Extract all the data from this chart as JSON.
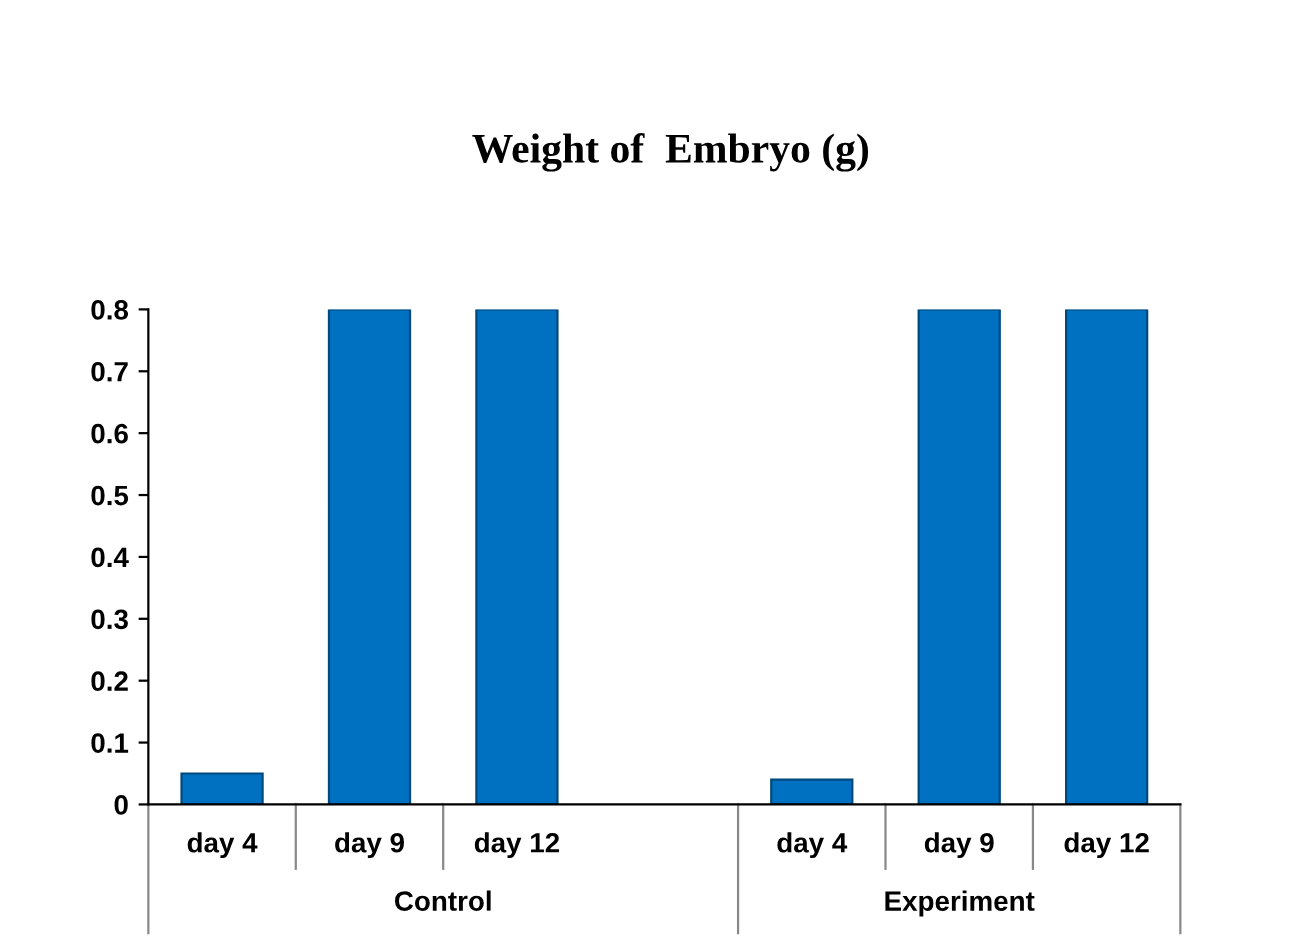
{
  "chart_data": {
    "type": "bar",
    "title": "Weight of  Embryo (g)",
    "categories": [
      "day 4",
      "day 9",
      "day 12",
      null,
      "day 4",
      "day 9",
      "day 12"
    ],
    "values": [
      0.05,
      0.8,
      0.8,
      null,
      0.04,
      0.8,
      0.8
    ],
    "color": "#0070c0",
    "ylim": [
      0,
      0.8
    ],
    "yticks": [
      0,
      0.1,
      0.2,
      0.3,
      0.4,
      0.5,
      0.6,
      0.7,
      0.8
    ],
    "grid": false,
    "annotations": [
      "Control",
      "Experiment"
    ]
  }
}
